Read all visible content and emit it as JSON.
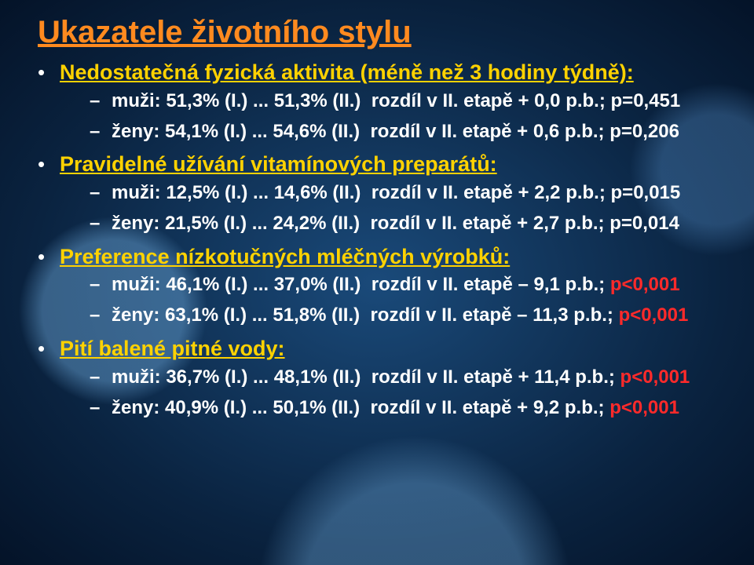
{
  "title": "Ukazatele životního stylu",
  "colors": {
    "title": "#ff8a1f",
    "section": "#ffd200",
    "body": "#ffffff",
    "highlight": "#ff2a2a",
    "bg_center": "#1a4a7a",
    "bg_edge": "#041328"
  },
  "fontsize": {
    "title": 40,
    "section": 27,
    "body": 24
  },
  "sections": [
    {
      "heading": "Nedostatečná fyzická aktivita (méně než 3 hodiny týdně):",
      "rows": [
        {
          "left": "muži: 51,3% (I.) ... 51,3% (II.)",
          "right": "rozdíl v II. etapě + 0,0 p.b.; p=0,451",
          "right_red": ""
        },
        {
          "left": "ženy: 54,1% (I.) ... 54,6% (II.)",
          "right": "rozdíl v II. etapě + 0,6 p.b.; p=0,206",
          "right_red": ""
        }
      ]
    },
    {
      "lead": " ",
      "heading": "Pravidelné užívání vitamínových preparátů:",
      "rows": [
        {
          "left": "muži: 12,5% (I.) ... 14,6% (II.)",
          "right": "rozdíl v II. etapě + 2,2 p.b.; p=0,015",
          "right_red": ""
        },
        {
          "left": "ženy: 21,5% (I.) ... 24,2% (II.)",
          "right": "rozdíl v II. etapě + 2,7 p.b.; p=0,014",
          "right_red": ""
        }
      ]
    },
    {
      "heading": "Preference nízkotučných mléčných výrobků:",
      "rows": [
        {
          "left": "muži: 46,1% (I.) ... 37,0% (II.)",
          "right": "rozdíl v II. etapě – 9,1 p.b.;  ",
          "right_red": "p<0,001"
        },
        {
          "left": "ženy: 63,1% (I.) ... 51,8% (II.)",
          "right": "rozdíl v II. etapě – 11,3 p.b.; ",
          "right_red": "p<0,001"
        }
      ]
    },
    {
      "heading": "Pití balené pitné vody:",
      "rows": [
        {
          "left": "muži: 36,7% (I.) ... 48,1% (II.)",
          "right": "rozdíl v II. etapě + 11,4 p.b.; ",
          "right_red": "p<0,001"
        },
        {
          "left": "ženy: 40,9% (I.) ... 50,1% (II.)",
          "right": "rozdíl v II. etapě + 9,2 p.b.;   ",
          "right_red": "p<0,001"
        }
      ]
    }
  ]
}
